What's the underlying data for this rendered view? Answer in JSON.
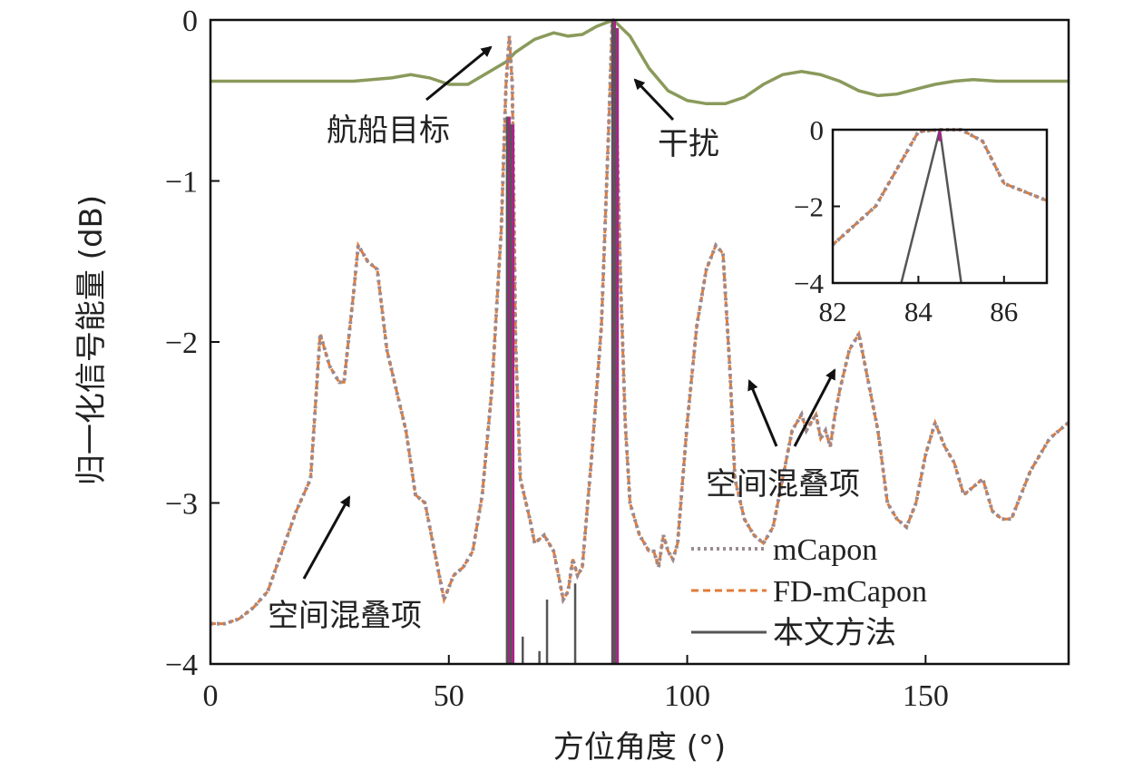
{
  "chart_data": [
    {
      "type": "line",
      "xlabel": "方位角度 (°)",
      "ylabel": "归一化信号能量 (dB)",
      "xlim": [
        0,
        180
      ],
      "ylim": [
        -4,
        0
      ],
      "xticks": [
        "0",
        "50",
        "100",
        "150"
      ],
      "yticks": [
        "0",
        "−1",
        "−2",
        "−3",
        "−4"
      ],
      "grid": false,
      "legend_position": "bottom-right",
      "colors": {
        "mCapon": "#9a8a92",
        "FD-mCapon": "#e07b39",
        "本文方法": "#555555",
        "magenta_overlay": "#b0208a",
        "beam": "#8a9a5b"
      },
      "series": [
        {
          "name": "mCapon",
          "style": "dotted",
          "x": [
            0,
            3,
            6,
            9,
            12,
            15,
            18,
            21,
            23,
            25,
            27,
            28,
            30,
            31,
            33,
            35,
            37,
            39,
            41,
            43,
            45,
            47,
            49,
            51,
            53,
            55,
            57,
            59,
            61,
            62,
            62.7,
            63.3,
            64,
            65,
            67,
            68,
            70,
            71,
            72,
            74,
            75,
            76,
            77,
            78,
            80,
            82,
            83.5,
            84.3,
            85,
            86,
            87,
            88,
            89,
            90,
            91,
            92,
            93,
            94,
            95,
            96,
            97,
            98,
            100,
            102,
            104,
            106,
            107.5,
            109,
            110,
            112,
            114,
            116,
            118,
            120,
            122,
            124,
            125,
            126,
            127,
            128,
            129,
            130,
            131,
            132,
            134,
            136,
            138,
            140,
            142,
            144,
            146,
            148,
            150,
            152,
            154,
            156,
            158,
            160,
            162,
            164,
            166,
            168,
            170,
            172,
            174,
            176,
            178,
            180
          ],
          "values": [
            -3.75,
            -3.75,
            -3.72,
            -3.65,
            -3.55,
            -3.3,
            -3.05,
            -2.85,
            -1.95,
            -2.15,
            -2.25,
            -2.25,
            -1.7,
            -1.4,
            -1.5,
            -1.55,
            -2.05,
            -2.3,
            -2.55,
            -2.95,
            -3.0,
            -3.3,
            -3.6,
            -3.45,
            -3.4,
            -3.3,
            -2.95,
            -2.3,
            -1.3,
            -0.4,
            -0.1,
            -0.4,
            -2.0,
            -2.85,
            -3.1,
            -3.25,
            -3.2,
            -3.25,
            -3.3,
            -3.6,
            -3.55,
            -3.35,
            -3.45,
            -3.4,
            -2.7,
            -1.9,
            -0.7,
            0.0,
            -0.4,
            -1.6,
            -2.5,
            -3.0,
            -3.1,
            -3.2,
            -3.25,
            -3.3,
            -3.3,
            -3.4,
            -3.2,
            -3.3,
            -3.35,
            -3.25,
            -2.5,
            -1.9,
            -1.55,
            -1.4,
            -1.45,
            -2.2,
            -2.85,
            -3.1,
            -3.2,
            -3.25,
            -3.15,
            -2.85,
            -2.55,
            -2.45,
            -2.55,
            -2.5,
            -2.45,
            -2.6,
            -2.55,
            -2.65,
            -2.45,
            -2.3,
            -2.05,
            -1.95,
            -2.25,
            -2.55,
            -3.0,
            -3.1,
            -3.15,
            -3.0,
            -2.7,
            -2.5,
            -2.65,
            -2.75,
            -2.95,
            -2.9,
            -2.85,
            -3.05,
            -3.1,
            -3.1,
            -2.95,
            -2.8,
            -2.7,
            -2.6,
            -2.55,
            -2.5
          ]
        },
        {
          "name": "FD-mCapon",
          "style": "dashed",
          "x": [
            0,
            3,
            6,
            9,
            12,
            15,
            18,
            21,
            23,
            25,
            27,
            28,
            30,
            31,
            33,
            35,
            37,
            39,
            41,
            43,
            45,
            47,
            49,
            51,
            53,
            55,
            57,
            59,
            61,
            62,
            62.7,
            63.3,
            64,
            65,
            67,
            68,
            70,
            71,
            72,
            74,
            75,
            76,
            77,
            78,
            80,
            82,
            83.5,
            84.3,
            85,
            86,
            87,
            88,
            89,
            90,
            91,
            92,
            93,
            94,
            95,
            96,
            97,
            98,
            100,
            102,
            104,
            106,
            107.5,
            109,
            110,
            112,
            114,
            116,
            118,
            120,
            122,
            124,
            125,
            126,
            127,
            128,
            129,
            130,
            131,
            132,
            134,
            136,
            138,
            140,
            142,
            144,
            146,
            148,
            150,
            152,
            154,
            156,
            158,
            160,
            162,
            164,
            166,
            168,
            170,
            172,
            174,
            176,
            178,
            180
          ],
          "values": [
            -3.75,
            -3.75,
            -3.72,
            -3.65,
            -3.55,
            -3.3,
            -3.05,
            -2.85,
            -1.95,
            -2.15,
            -2.25,
            -2.25,
            -1.7,
            -1.4,
            -1.5,
            -1.55,
            -2.05,
            -2.3,
            -2.55,
            -2.95,
            -3.0,
            -3.3,
            -3.6,
            -3.45,
            -3.4,
            -3.3,
            -2.95,
            -2.3,
            -1.3,
            -0.4,
            -0.1,
            -0.4,
            -2.0,
            -2.85,
            -3.1,
            -3.25,
            -3.2,
            -3.25,
            -3.3,
            -3.6,
            -3.55,
            -3.35,
            -3.45,
            -3.4,
            -2.7,
            -1.9,
            -0.7,
            0.0,
            -0.4,
            -1.6,
            -2.5,
            -3.0,
            -3.1,
            -3.2,
            -3.25,
            -3.3,
            -3.3,
            -3.4,
            -3.2,
            -3.3,
            -3.35,
            -3.25,
            -2.5,
            -1.9,
            -1.55,
            -1.4,
            -1.45,
            -2.2,
            -2.85,
            -3.1,
            -3.2,
            -3.25,
            -3.15,
            -2.85,
            -2.55,
            -2.45,
            -2.55,
            -2.5,
            -2.45,
            -2.6,
            -2.55,
            -2.65,
            -2.45,
            -2.3,
            -2.05,
            -1.95,
            -2.25,
            -2.55,
            -3.0,
            -3.1,
            -3.15,
            -3.0,
            -2.7,
            -2.5,
            -2.65,
            -2.75,
            -2.95,
            -2.9,
            -2.85,
            -3.05,
            -3.1,
            -3.1,
            -2.95,
            -2.8,
            -2.7,
            -2.6,
            -2.55,
            -2.5
          ]
        },
        {
          "name": "本文方法",
          "style": "solid",
          "stems": [
            {
              "x": 62.2,
              "y": -0.6
            },
            {
              "x": 63.0,
              "y": -0.65
            },
            {
              "x": 65.5,
              "y": -3.83
            },
            {
              "x": 69.0,
              "y": -3.92
            },
            {
              "x": 70.6,
              "y": -3.6
            },
            {
              "x": 76.5,
              "y": -3.5
            },
            {
              "x": 84.3,
              "y": 0.0
            },
            {
              "x": 84.9,
              "y": -0.05
            }
          ]
        },
        {
          "name": "",
          "style": "solid-thin",
          "x": [
            0,
            10,
            20,
            30,
            38,
            42,
            46,
            50,
            54,
            58,
            62,
            64,
            68,
            72,
            75,
            78,
            81,
            84.5,
            88,
            92,
            96,
            100,
            104,
            108,
            112,
            116,
            120,
            124,
            128,
            132,
            136,
            140,
            144,
            148,
            152,
            156,
            160,
            165,
            170,
            175,
            180
          ],
          "values": [
            -0.38,
            -0.38,
            -0.38,
            -0.38,
            -0.36,
            -0.34,
            -0.36,
            -0.4,
            -0.4,
            -0.33,
            -0.26,
            -0.2,
            -0.12,
            -0.08,
            -0.1,
            -0.09,
            -0.04,
            0.0,
            -0.1,
            -0.3,
            -0.44,
            -0.5,
            -0.52,
            -0.52,
            -0.48,
            -0.4,
            -0.34,
            -0.32,
            -0.34,
            -0.38,
            -0.44,
            -0.47,
            -0.46,
            -0.43,
            -0.4,
            -0.38,
            -0.37,
            -0.38,
            -0.38,
            -0.38,
            -0.38
          ]
        }
      ],
      "annotations": [
        {
          "text": "航船目标",
          "arrow_to": {
            "x": 60.5,
            "y": -0.15
          }
        },
        {
          "text": "干扰",
          "arrow_to": {
            "x": 87.5,
            "y": -0.35
          }
        },
        {
          "text": "空间混叠项",
          "arrow_to": {
            "x": 29.5,
            "y": -2.95
          }
        },
        {
          "text": "空间混叠项",
          "arrow_to": [
            {
              "x": 113.5,
              "y": -2.2
            },
            {
              "x": 131.5,
              "y": -1.7
            }
          ]
        }
      ]
    },
    {
      "type": "line",
      "inset": true,
      "xlim": [
        82,
        87
      ],
      "ylim": [
        -4,
        0
      ],
      "xticks": [
        "82",
        "84",
        "86"
      ],
      "yticks": [
        "0",
        "−2",
        "−4"
      ],
      "series": [
        {
          "name": "mCapon",
          "style": "dotted",
          "x": [
            82,
            83,
            84,
            84.5,
            85,
            85.5,
            86,
            87
          ],
          "values": [
            -3.0,
            -2.0,
            -0.05,
            0.0,
            0.0,
            -0.3,
            -1.4,
            -1.85
          ]
        },
        {
          "name": "本文方法",
          "style": "solid",
          "x": [
            83.6,
            84.5,
            85.0
          ],
          "values": [
            -4.0,
            0.0,
            -4.0
          ]
        }
      ]
    }
  ]
}
